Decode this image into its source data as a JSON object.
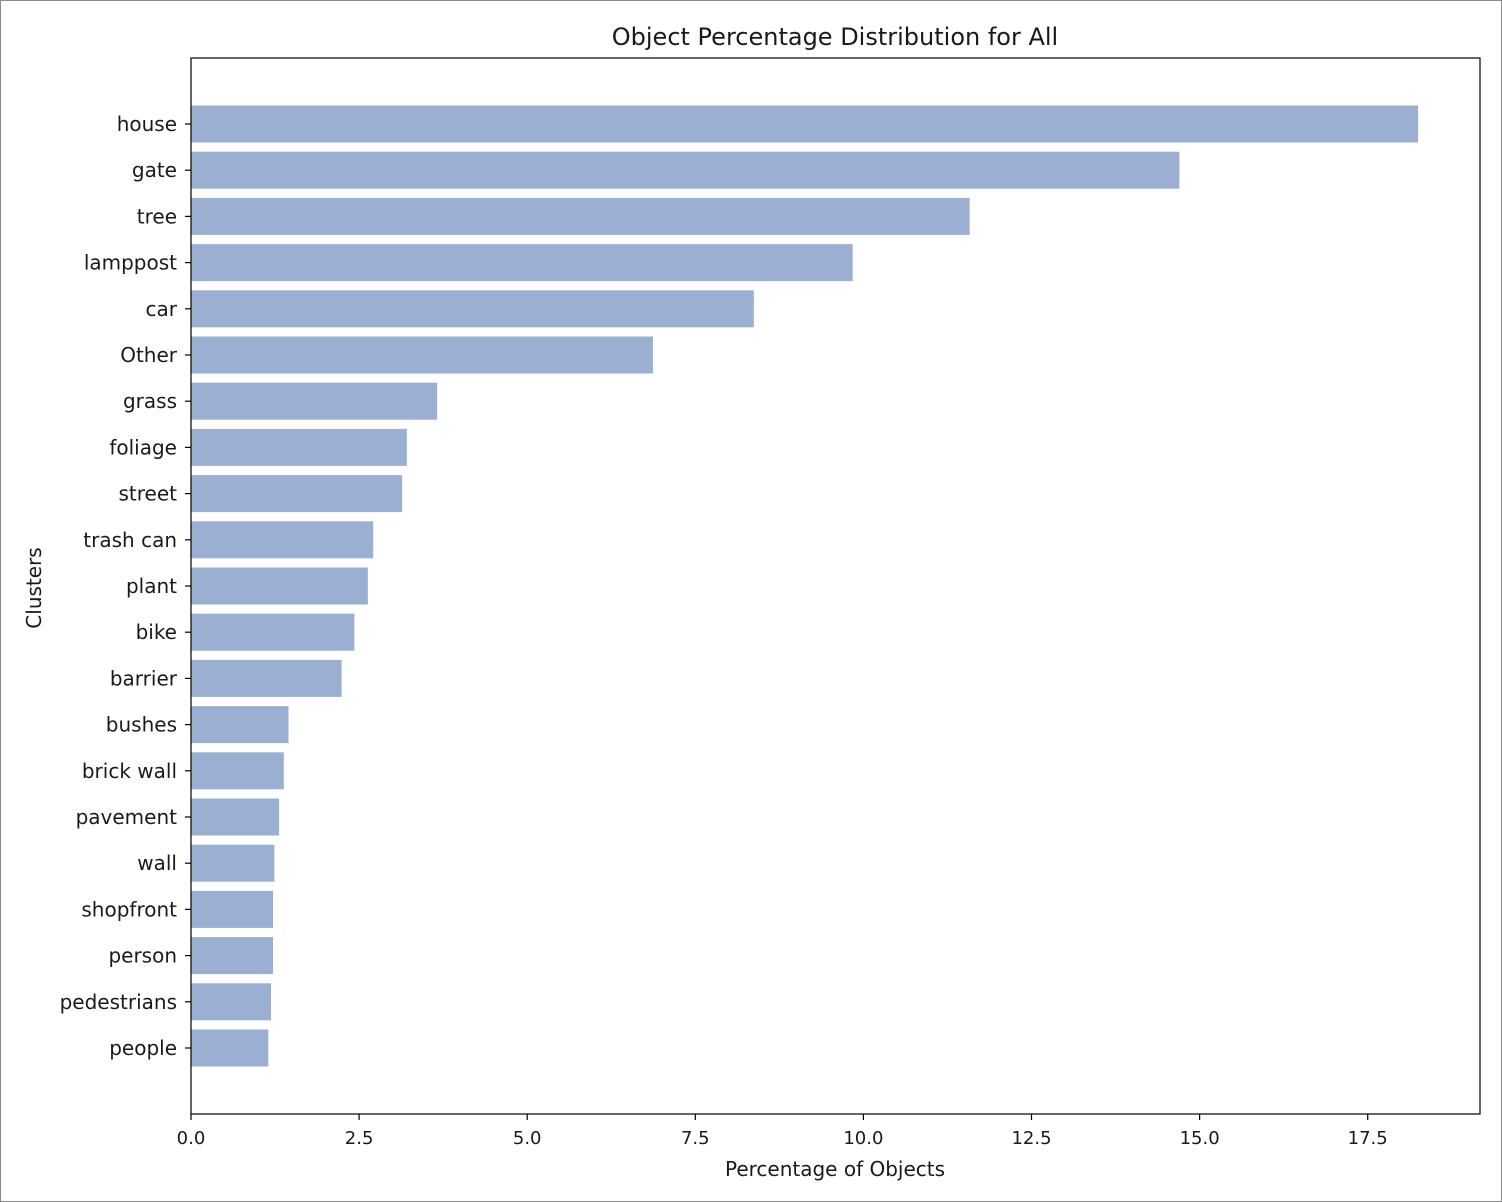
{
  "chart_data": {
    "type": "bar",
    "orientation": "horizontal",
    "title": "Object Percentage Distribution for All",
    "xlabel": "Percentage of Objects",
    "ylabel": "Clusters",
    "categories": [
      "house",
      "gate",
      "tree",
      "lamppost",
      "car",
      "Other",
      "grass",
      "foliage",
      "street",
      "trash can",
      "plant",
      "bike",
      "barrier",
      "bushes",
      "brick wall",
      "pavement",
      "wall",
      "shopfront",
      "person",
      "pedestrians",
      "people"
    ],
    "values": [
      18.25,
      14.7,
      11.58,
      9.84,
      8.37,
      6.87,
      3.66,
      3.21,
      3.14,
      2.71,
      2.63,
      2.43,
      2.24,
      1.45,
      1.38,
      1.31,
      1.24,
      1.22,
      1.22,
      1.19,
      1.15
    ],
    "xlim": [
      0,
      19.17
    ],
    "xticks": [
      0.0,
      2.5,
      5.0,
      7.5,
      10.0,
      12.5,
      15.0,
      17.5
    ],
    "xtick_labels": [
      "0.0",
      "2.5",
      "5.0",
      "7.5",
      "10.0",
      "12.5",
      "15.0",
      "17.5"
    ],
    "grid": false,
    "bar_color": "#9bafd3"
  }
}
